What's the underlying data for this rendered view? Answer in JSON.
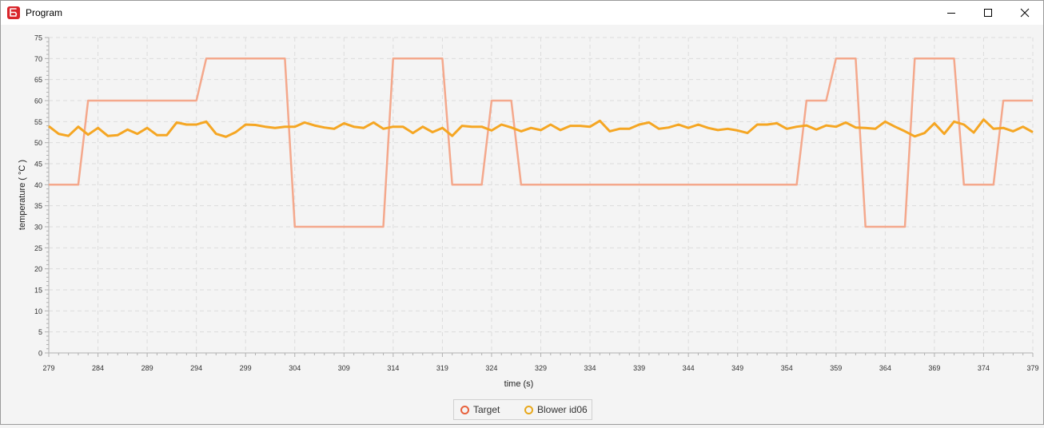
{
  "window": {
    "title": "Program",
    "controls": [
      "minimize",
      "maximize",
      "close"
    ]
  },
  "chart_data": {
    "type": "line",
    "title": "",
    "xlabel": "time (s)",
    "ylabel": "temperature ( °C )",
    "xlim": [
      279,
      379
    ],
    "ylim": [
      0,
      75
    ],
    "xticks": [
      279,
      284,
      289,
      294,
      299,
      304,
      309,
      314,
      319,
      324,
      329,
      334,
      339,
      344,
      349,
      354,
      359,
      364,
      369,
      374,
      379
    ],
    "yticks": [
      0,
      5,
      10,
      15,
      20,
      25,
      30,
      35,
      40,
      45,
      50,
      55,
      60,
      65,
      70,
      75
    ],
    "grid": true,
    "legend": "bottom-center",
    "series": [
      {
        "name": "Target",
        "color": "#f4a88c",
        "marker_color": "#e8613c",
        "x": [
          279,
          282,
          283,
          294,
          295,
          303,
          304,
          313,
          314,
          319,
          320,
          323,
          324,
          326,
          327,
          355,
          356,
          358,
          359,
          361,
          362,
          366,
          367,
          371,
          372,
          375,
          376,
          379
        ],
        "y": [
          40,
          40,
          60,
          60,
          70,
          70,
          30,
          30,
          70,
          70,
          40,
          40,
          60,
          60,
          40,
          40,
          60,
          60,
          70,
          70,
          30,
          30,
          70,
          70,
          40,
          40,
          60,
          60
        ]
      },
      {
        "name": "Blower id06",
        "color": "#f5a623",
        "marker_color": "#e8a81c",
        "x": [
          279,
          280,
          281,
          282,
          283,
          284,
          285,
          286,
          287,
          288,
          289,
          290,
          291,
          292,
          293,
          294,
          295,
          296,
          297,
          298,
          299,
          300,
          301,
          302,
          303,
          304,
          305,
          306,
          307,
          308,
          309,
          310,
          311,
          312,
          313,
          314,
          315,
          316,
          317,
          318,
          319,
          320,
          321,
          322,
          323,
          324,
          325,
          326,
          327,
          328,
          329,
          330,
          331,
          332,
          333,
          334,
          335,
          336,
          337,
          338,
          339,
          340,
          341,
          342,
          343,
          344,
          345,
          346,
          347,
          348,
          349,
          350,
          351,
          352,
          353,
          354,
          355,
          356,
          357,
          358,
          359,
          360,
          361,
          362,
          363,
          364,
          365,
          366,
          367,
          368,
          369,
          370,
          371,
          372,
          373,
          374,
          375,
          376,
          377,
          378,
          379
        ],
        "y": [
          53.9,
          52.1,
          51.6,
          53.8,
          51.9,
          53.5,
          51.6,
          51.8,
          53.1,
          52.1,
          53.5,
          51.8,
          51.8,
          54.8,
          54.3,
          54.3,
          55.0,
          52.1,
          51.4,
          52.5,
          54.3,
          54.2,
          53.8,
          53.5,
          53.8,
          53.8,
          54.8,
          54.1,
          53.6,
          53.3,
          54.6,
          53.8,
          53.5,
          54.8,
          53.3,
          53.8,
          53.8,
          52.3,
          53.8,
          52.5,
          53.5,
          51.6,
          54.0,
          53.8,
          53.8,
          52.9,
          54.3,
          53.6,
          52.7,
          53.5,
          53.0,
          54.3,
          53.0,
          54.0,
          54.0,
          53.8,
          55.2,
          52.7,
          53.3,
          53.3,
          54.3,
          54.8,
          53.3,
          53.6,
          54.3,
          53.5,
          54.3,
          53.5,
          53.0,
          53.3,
          52.9,
          52.3,
          54.3,
          54.3,
          54.6,
          53.3,
          53.8,
          54.1,
          53.1,
          54.1,
          53.8,
          54.8,
          53.6,
          53.5,
          53.3,
          55.0,
          53.8,
          52.7,
          51.5,
          52.3,
          54.6,
          52.1,
          55.0,
          54.3,
          52.4,
          55.5,
          53.3,
          53.5,
          52.7,
          53.8,
          52.5
        ]
      }
    ]
  }
}
